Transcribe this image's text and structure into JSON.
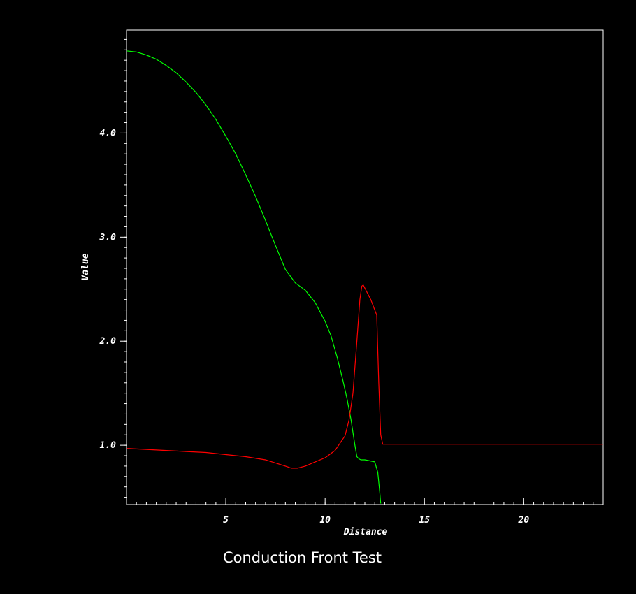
{
  "chart_data": {
    "type": "line",
    "title": "Conduction Front Test",
    "xlabel": "Distance",
    "ylabel": "Value",
    "xlim": [
      0,
      24
    ],
    "ylim": [
      0.43,
      4.99
    ],
    "xticks": [
      5,
      10,
      15,
      20
    ],
    "xtick_labels": [
      "5",
      "10",
      "15",
      "20"
    ],
    "xminor_step": 0.5,
    "yticks": [
      1.0,
      2.0,
      3.0,
      4.0
    ],
    "ytick_labels": [
      "1.0",
      "2.0",
      "3.0",
      "4.0"
    ],
    "yminor_step": 0.1,
    "grid": false,
    "background": "#000000",
    "axes_color": "#ffffff",
    "series": [
      {
        "color": "#00ff00",
        "x": [
          0.0,
          0.5,
          1.0,
          1.5,
          2.0,
          2.5,
          3.0,
          3.5,
          4.0,
          4.5,
          5.0,
          5.5,
          6.0,
          6.5,
          7.0,
          7.5,
          8.0,
          8.5,
          9.0,
          9.5,
          10.0,
          10.3,
          10.6,
          10.9,
          11.1,
          11.3,
          11.5,
          11.6,
          11.7,
          11.8,
          11.9,
          12.0,
          12.5,
          12.65,
          12.75,
          12.8
        ],
        "y": [
          4.79,
          4.78,
          4.75,
          4.71,
          4.65,
          4.58,
          4.49,
          4.39,
          4.27,
          4.13,
          3.97,
          3.8,
          3.6,
          3.39,
          3.16,
          2.92,
          2.69,
          2.56,
          2.49,
          2.37,
          2.19,
          2.05,
          1.85,
          1.62,
          1.45,
          1.25,
          1.0,
          0.89,
          0.87,
          0.86,
          0.86,
          0.86,
          0.84,
          0.74,
          0.55,
          0.44
        ]
      },
      {
        "color": "#ff0000",
        "x": [
          0.0,
          1.0,
          2.0,
          3.0,
          4.0,
          5.0,
          6.0,
          7.0,
          7.5,
          8.0,
          8.3,
          8.6,
          9.0,
          9.5,
          10.0,
          10.5,
          11.0,
          11.2,
          11.4,
          11.6,
          11.75,
          11.85,
          11.92,
          12.0,
          12.3,
          12.6,
          12.7,
          12.8,
          12.9,
          13.5,
          15.0,
          20.0,
          24.0
        ],
        "y": [
          0.97,
          0.96,
          0.95,
          0.94,
          0.93,
          0.91,
          0.89,
          0.86,
          0.83,
          0.8,
          0.78,
          0.78,
          0.8,
          0.84,
          0.88,
          0.95,
          1.09,
          1.24,
          1.5,
          2.0,
          2.4,
          2.53,
          2.54,
          2.51,
          2.4,
          2.25,
          1.6,
          1.1,
          1.01,
          1.01,
          1.01,
          1.01,
          1.01
        ]
      }
    ]
  }
}
